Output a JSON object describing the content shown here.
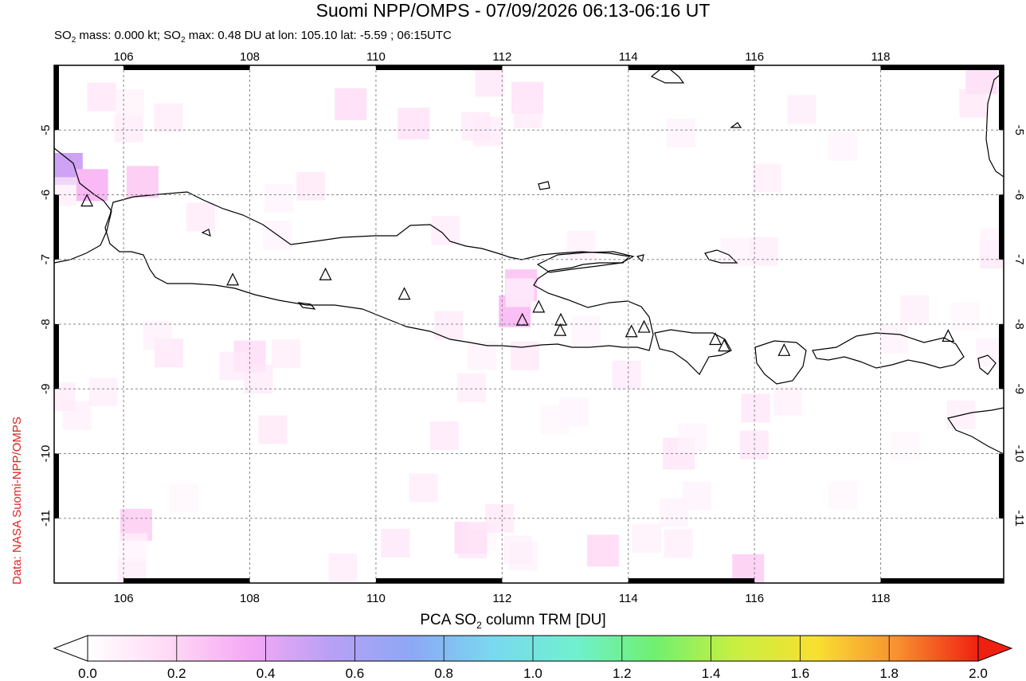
{
  "title": "Suomi NPP/OMPS - 07/09/2026 06:13-06:16 UT",
  "subtitle": {
    "mass_label_pre": "SO",
    "mass_label_sub": "2",
    "mass_text": " mass: 0.000 kt; SO",
    "max_sub": "2",
    "max_text": " max: 0.48 DU at lon: 105.10 lat: -5.59 ; 06:15UTC"
  },
  "credit": "Data: NASA Suomi-NPP/OMPS",
  "map": {
    "lon_range": [
      104.9,
      119.95
    ],
    "lat_range": [
      -12.0,
      -4.0
    ],
    "lon_ticks": [
      106,
      108,
      110,
      112,
      114,
      116,
      118
    ],
    "lat_ticks": [
      -5,
      -6,
      -7,
      -8,
      -9,
      -10,
      -11
    ],
    "lon_tick_labels": [
      "106",
      "108",
      "110",
      "112",
      "114",
      "116",
      "118"
    ],
    "lat_tick_labels": [
      "-5",
      "-6",
      "-7",
      "-8",
      "-9",
      "-10",
      "-11"
    ],
    "grid": "dotted",
    "volcanoes": [
      {
        "lon": 105.42,
        "lat": -6.1
      },
      {
        "lon": 107.73,
        "lat": -7.32
      },
      {
        "lon": 109.2,
        "lat": -7.24
      },
      {
        "lon": 110.45,
        "lat": -7.54
      },
      {
        "lon": 112.32,
        "lat": -7.94
      },
      {
        "lon": 112.58,
        "lat": -7.74
      },
      {
        "lon": 112.93,
        "lat": -7.94
      },
      {
        "lon": 112.92,
        "lat": -8.1
      },
      {
        "lon": 114.05,
        "lat": -8.12
      },
      {
        "lon": 114.25,
        "lat": -8.05
      },
      {
        "lon": 115.38,
        "lat": -8.24
      },
      {
        "lon": 115.52,
        "lat": -8.34
      },
      {
        "lon": 116.47,
        "lat": -8.41
      },
      {
        "lon": 119.07,
        "lat": -8.19
      }
    ],
    "so2_pixels": [
      {
        "lon": 105.1,
        "lat": -5.6,
        "du": 0.48
      },
      {
        "lon": 105.5,
        "lat": -5.85,
        "du": 0.3
      },
      {
        "lon": 106.3,
        "lat": -5.8,
        "du": 0.22
      },
      {
        "lon": 112.2,
        "lat": -7.8,
        "du": 0.28
      },
      {
        "lon": 112.3,
        "lat": -7.4,
        "du": 0.24
      },
      {
        "lon": 106.2,
        "lat": -11.1,
        "du": 0.2
      },
      {
        "lon": 111.5,
        "lat": -11.3,
        "du": 0.15
      },
      {
        "lon": 113.6,
        "lat": -11.5,
        "du": 0.16
      },
      {
        "lon": 115.9,
        "lat": -11.8,
        "du": 0.2
      },
      {
        "lon": 119.6,
        "lat": -4.2,
        "du": 0.14
      },
      {
        "lon": 108.0,
        "lat": -8.5,
        "du": 0.14
      },
      {
        "lon": 109.6,
        "lat": -4.6,
        "du": 0.14
      },
      {
        "lon": 110.6,
        "lat": -4.9,
        "du": 0.12
      },
      {
        "lon": 112.4,
        "lat": -4.5,
        "du": 0.12
      },
      {
        "lon": 114.8,
        "lat": -10.0,
        "du": 0.1
      }
    ]
  },
  "colorbar": {
    "title_pre": "PCA SO",
    "title_sub": "2",
    "title_post": " column TRM [DU]",
    "range": [
      0.0,
      2.0
    ],
    "tick_labels": [
      "0.0",
      "0.2",
      "0.4",
      "0.6",
      "0.8",
      "1.0",
      "1.2",
      "1.4",
      "1.6",
      "1.8",
      "2.0"
    ],
    "colors": [
      "#ffffff",
      "#ffd9f5",
      "#f5a8f5",
      "#b8a0f5",
      "#8ca8f5",
      "#7ad8f0",
      "#70f0d0",
      "#70f070",
      "#c8f040",
      "#f8e030",
      "#f89030",
      "#f02010"
    ]
  }
}
